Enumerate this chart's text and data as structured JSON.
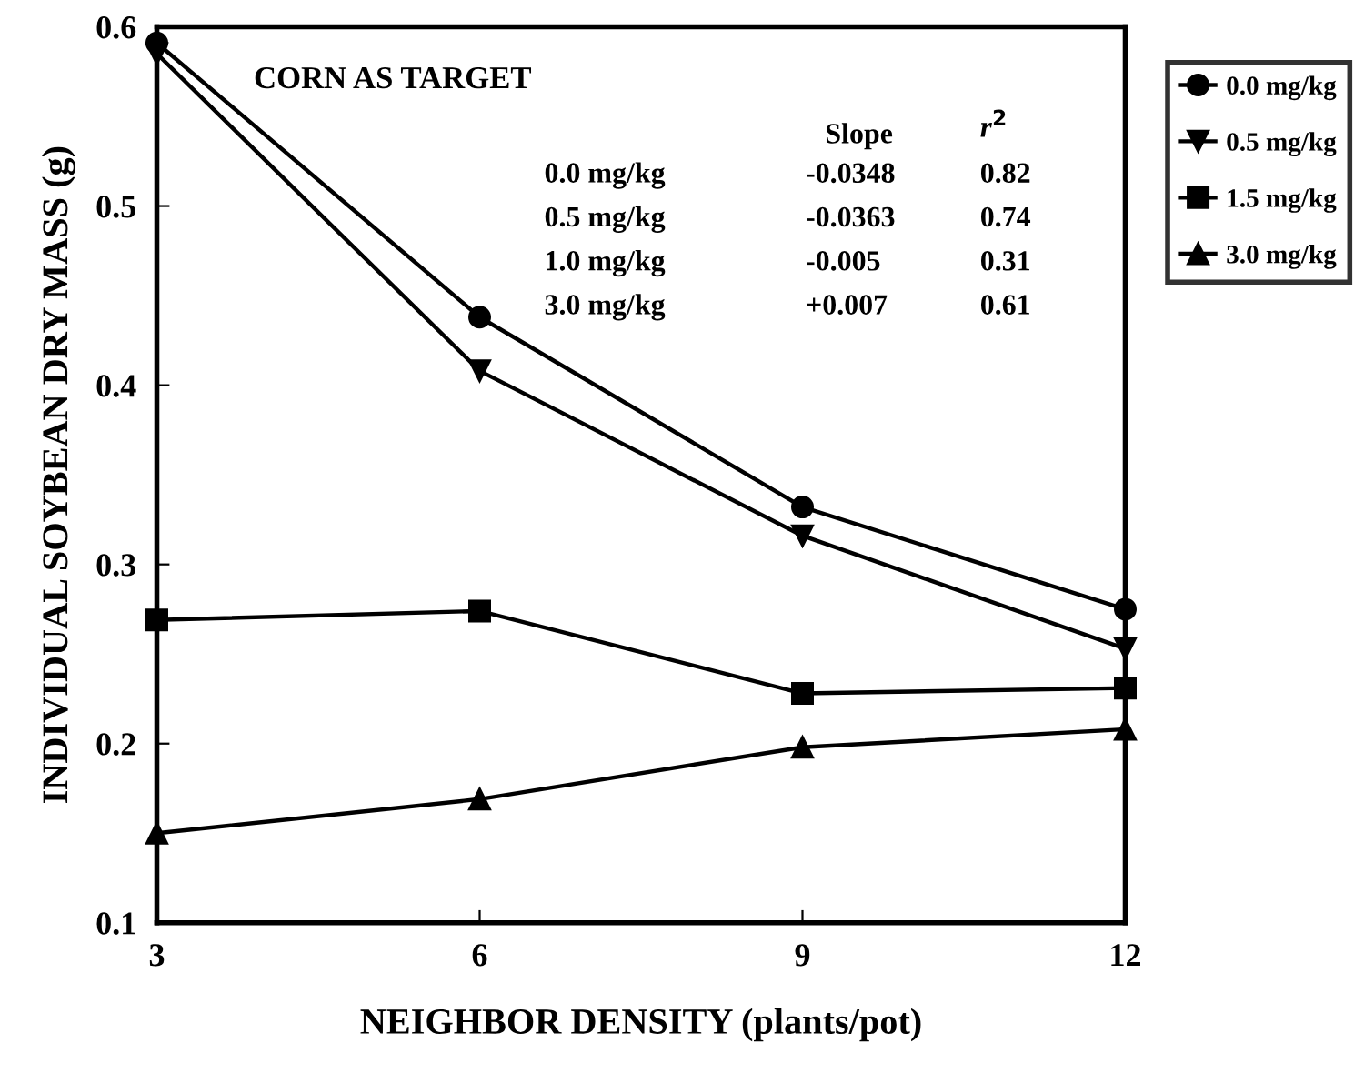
{
  "chart_data": {
    "type": "line",
    "xlabel": "NEIGHBOR DENSITY (plants/pot)",
    "ylabel": "INDIVIDUAL SOYBEAN DRY MASS (g)",
    "x": [
      3,
      6,
      9,
      12
    ],
    "series": [
      {
        "name": "0.0 mg/kg",
        "color": "#000000",
        "marker": "circle",
        "values": [
          0.591,
          0.438,
          0.332,
          0.275
        ]
      },
      {
        "name": "0.5 mg/kg",
        "color": "#000000",
        "marker": "triangle_down",
        "values": [
          0.585,
          0.408,
          0.316,
          0.253
        ]
      },
      {
        "name": "1.5 mg/kg",
        "color": "#000000",
        "marker": "square",
        "values": [
          0.269,
          0.274,
          0.228,
          0.231
        ]
      },
      {
        "name": "3.0 mg/kg",
        "color": "#000000",
        "marker": "triangle",
        "values": [
          0.15,
          0.169,
          0.198,
          0.208
        ]
      }
    ],
    "annotations": [
      "CORN AS TARGET",
      "Slope",
      "r$^{2}$",
      "0.0 mg/kg",
      "-0.0348",
      "0.82",
      "0.5 mg/kg",
      "-0.0363",
      "0.74",
      "1.0 mg/kg",
      "-0.005",
      "0.31",
      "3.0 mg/kg",
      "+0.007",
      "0.61"
    ],
    "xlim": [
      3,
      12
    ],
    "xticks": [
      3,
      6,
      9,
      12
    ],
    "ylim": [
      0.1,
      0.6
    ],
    "yticks": [
      0.1,
      0.2,
      0.3,
      0.4,
      0.5,
      0.6
    ],
    "grid": false,
    "legend": "top right",
    "line_style": "solid"
  }
}
